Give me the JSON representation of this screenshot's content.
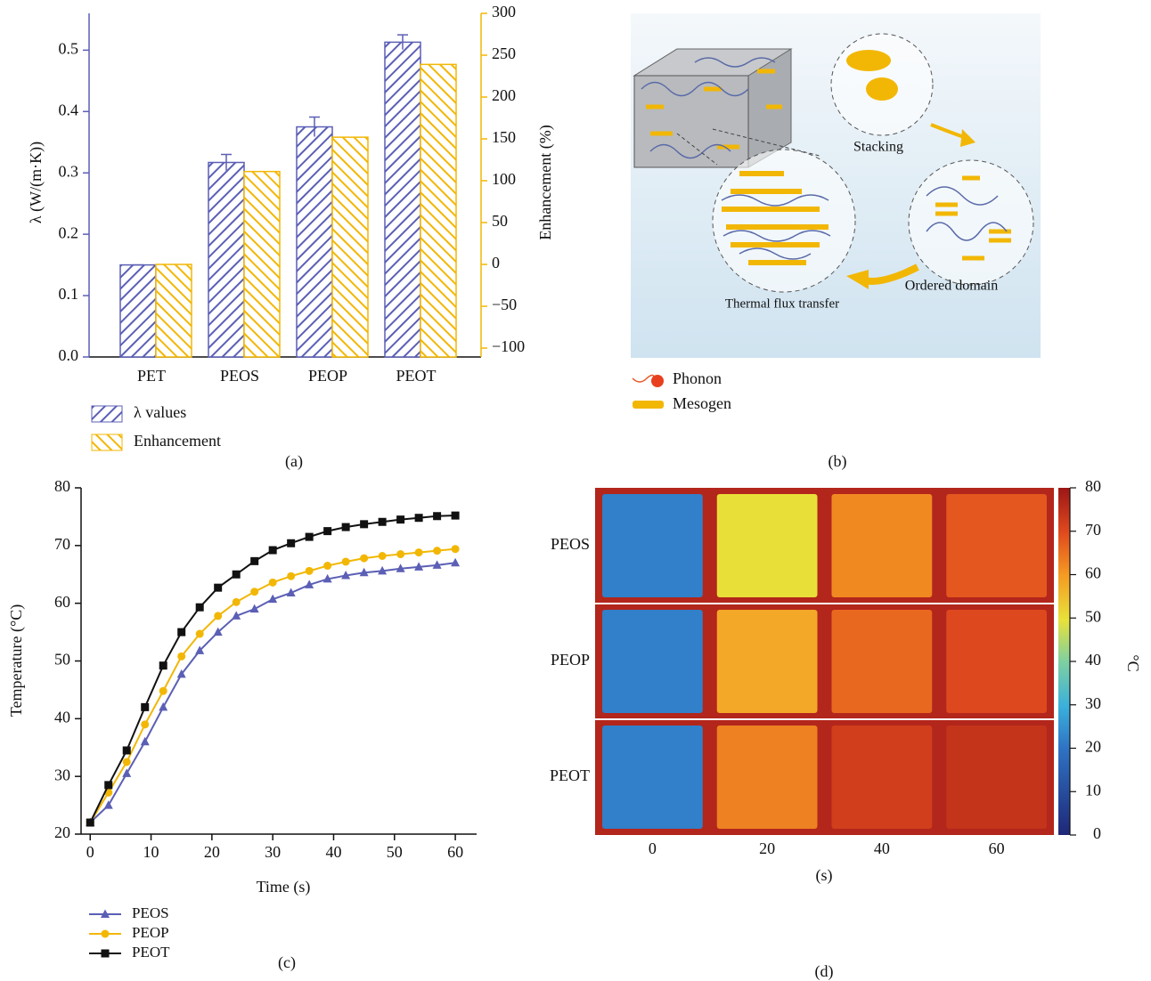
{
  "chart_data": [
    {
      "type": "bar",
      "caption": "(a)",
      "ylabel": "λ (W/(m·K))",
      "y2label": "Enhancement (%)",
      "categories": [
        "PET",
        "PEOS",
        "PEOP",
        "PEOT"
      ],
      "ylim": [
        0,
        0.56
      ],
      "yticks": [
        {
          "value": 0,
          "label": "0.0"
        },
        0.1,
        0.2,
        0.3,
        0.4,
        0.5
      ],
      "y2lim": [
        -110.6,
        300
      ],
      "y2ticks": [
        {
          "value": -100,
          "label": "−100"
        },
        {
          "value": -50,
          "label": "−50"
        },
        0,
        50,
        100,
        150,
        200,
        250,
        300
      ],
      "series": [
        {
          "name": "λ values",
          "color": "#5b5fb5",
          "values": [
            0.15,
            0.317,
            0.375,
            0.513
          ],
          "errors": [
            0,
            0.013,
            0.016,
            0.012
          ]
        },
        {
          "name": "Enhancement",
          "color": "#f2b705",
          "axis": "y2",
          "values": [
            0,
            111,
            152,
            239
          ]
        }
      ]
    },
    {
      "type": "line",
      "caption": "(c)",
      "xlabel": "Time (s)",
      "ylabel": "Temperature (°C)",
      "x": [
        0,
        3,
        6,
        9,
        12,
        15,
        18,
        21,
        24,
        27,
        30,
        33,
        36,
        39,
        42,
        45,
        48,
        51,
        54,
        57,
        60
      ],
      "xlim": [
        -1.5,
        63.5
      ],
      "xticks": [
        0,
        10,
        20,
        30,
        40,
        50,
        60
      ],
      "ylim": [
        20,
        80
      ],
      "yticks": [
        20,
        30,
        40,
        50,
        60,
        70,
        80
      ],
      "series": [
        {
          "name": "PEOS",
          "color": "#5b5fb5",
          "marker": "triangle",
          "values": [
            22,
            25,
            30.5,
            36,
            42,
            47.7,
            51.8,
            55,
            57.8,
            59,
            60.7,
            61.8,
            63.2,
            64.2,
            64.8,
            65.3,
            65.6,
            66,
            66.3,
            66.6,
            67
          ]
        },
        {
          "name": "PEOP",
          "color": "#f2b705",
          "marker": "circle",
          "values": [
            22,
            27.2,
            32.5,
            39,
            44.8,
            50.8,
            54.7,
            57.8,
            60.2,
            62,
            63.6,
            64.7,
            65.6,
            66.5,
            67.2,
            67.8,
            68.2,
            68.5,
            68.8,
            69.1,
            69.4
          ]
        },
        {
          "name": "PEOT",
          "color": "#111111",
          "marker": "square",
          "values": [
            22,
            28.5,
            34.5,
            42,
            49.2,
            55,
            59.3,
            62.7,
            65,
            67.3,
            69.2,
            70.4,
            71.5,
            72.5,
            73.2,
            73.7,
            74.1,
            74.5,
            74.8,
            75.1,
            75.2
          ]
        }
      ]
    },
    {
      "type": "heatmap",
      "caption": "(d)",
      "xlabel": "(s)",
      "rows": [
        "PEOS",
        "PEOP",
        "PEOT"
      ],
      "categories": [
        0,
        20,
        40,
        60
      ],
      "values": [
        [
          22,
          50,
          62,
          68
        ],
        [
          22,
          58,
          66,
          70
        ],
        [
          22,
          63,
          72,
          74
        ]
      ],
      "colorbar_lim": [
        0,
        80
      ],
      "colorbar_ticks": [
        0,
        10,
        20,
        30,
        40,
        50,
        60,
        70,
        80
      ],
      "colorbar_label": "°C"
    }
  ],
  "diagram": {
    "caption": "(b)",
    "labels": [
      "Stacking",
      "Ordered domain",
      "Thermal flux transfer"
    ],
    "legend": [
      "Phonon",
      "Mesogen"
    ]
  }
}
